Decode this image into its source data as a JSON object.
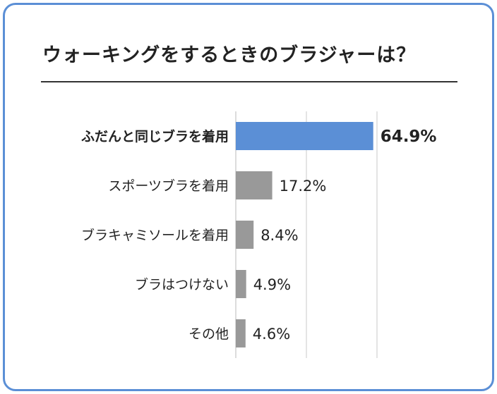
{
  "title": "ウォーキングをするときのブラジャーは？",
  "colors": {
    "border": "#5b8fd6",
    "highlight_bar": "#5b8fd6",
    "bar": "#999999",
    "grid": "#c8c8c8"
  },
  "chart_data": {
    "type": "bar",
    "orientation": "horizontal",
    "categories": [
      "ふだんと同じブラを着用",
      "スポーツブラを着用",
      "ブラキャミソールを着用",
      "ブラはつけない",
      "その他"
    ],
    "values": [
      64.9,
      17.2,
      8.4,
      4.9,
      4.6
    ],
    "value_labels": [
      "64.9%",
      "17.2%",
      "8.4%",
      "4.9%",
      "4.6%"
    ],
    "highlight_index": 0,
    "xlim": [
      0,
      75
    ],
    "grid": true,
    "title": "ウォーキングをするときのブラジャーは？",
    "xlabel": "",
    "ylabel": ""
  }
}
